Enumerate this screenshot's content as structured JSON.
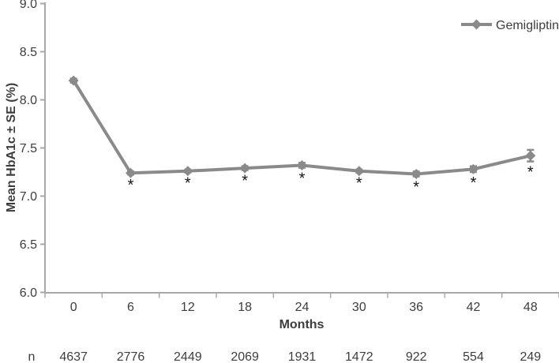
{
  "figure": {
    "background": "#ffffff"
  },
  "chart_data": {
    "type": "line",
    "title": "",
    "xlabel": "Months",
    "ylabel": "Mean HbA1c ± SE (%)",
    "x_categories": [
      "0",
      "6",
      "12",
      "18",
      "24",
      "30",
      "36",
      "42",
      "48"
    ],
    "x_values": [
      0,
      6,
      12,
      18,
      24,
      30,
      36,
      42,
      48
    ],
    "y_ticks": [
      "6.0",
      "6.5",
      "7.0",
      "7.5",
      "8.0",
      "8.5",
      "9.0"
    ],
    "ylim": [
      6.0,
      9.0
    ],
    "grid": false,
    "legend_position": "top-right",
    "series": [
      {
        "name": "Gemigliptin",
        "color": "#8a8a8a",
        "marker": "diamond",
        "values": [
          8.2,
          7.24,
          7.26,
          7.29,
          7.32,
          7.26,
          7.23,
          7.28,
          7.42
        ],
        "se": [
          0.02,
          0.015,
          0.015,
          0.02,
          0.025,
          0.015,
          0.025,
          0.03,
          0.06
        ],
        "significant": [
          false,
          true,
          true,
          true,
          true,
          true,
          true,
          true,
          true
        ],
        "significance_symbol": "*"
      }
    ],
    "n_row": {
      "label": "n",
      "values": [
        "4637",
        "2776",
        "2449",
        "2069",
        "1931",
        "1472",
        "922",
        "554",
        "249"
      ]
    },
    "colors": {
      "axis": "#a8a8a8",
      "text": "#3d3d3d",
      "series": "#8a8a8a",
      "significance": "#141414"
    }
  }
}
